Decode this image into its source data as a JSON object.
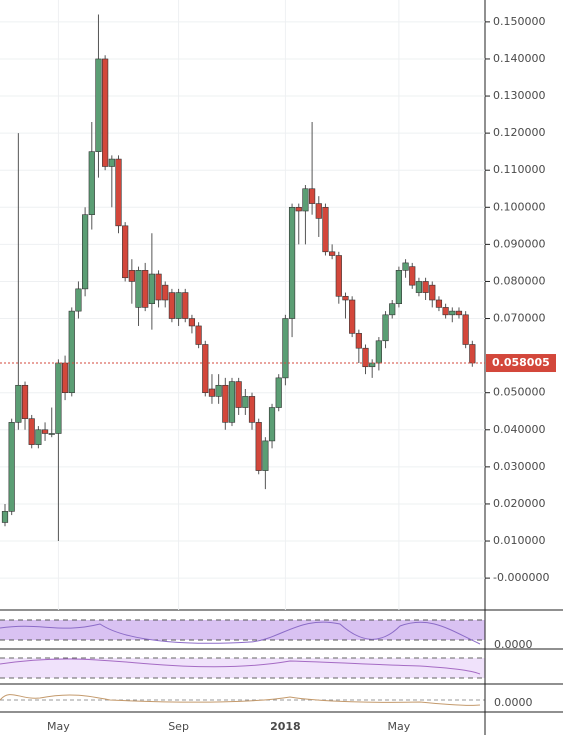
{
  "chart_data": {
    "type": "candlestick",
    "categories": [
      null,
      null,
      null,
      null,
      null,
      null,
      null,
      null,
      "May",
      null,
      null,
      null,
      null,
      null,
      null,
      null,
      null,
      null,
      null,
      null,
      null,
      null,
      null,
      null,
      null,
      null,
      "Sep",
      null,
      null,
      null,
      null,
      null,
      null,
      null,
      null,
      null,
      null,
      null,
      null,
      null,
      null,
      null,
      "2018",
      null,
      null,
      null,
      null,
      null,
      null,
      null,
      null,
      null,
      null,
      null,
      null,
      null,
      null,
      null,
      null,
      "May",
      null,
      null,
      null,
      null,
      null,
      null,
      null,
      null,
      null,
      null,
      null
    ],
    "open": [
      0.015,
      0.018,
      0.042,
      0.052,
      0.043,
      0.036,
      0.04,
      0.039,
      0.039,
      0.058,
      0.05,
      0.072,
      0.078,
      0.098,
      0.115,
      0.14,
      0.111,
      0.113,
      0.095,
      0.083,
      0.073,
      0.083,
      0.074,
      0.082,
      0.079,
      0.077,
      0.07,
      0.077,
      0.07,
      0.068,
      0.063,
      0.051,
      0.049,
      0.052,
      0.042,
      0.053,
      0.046,
      0.049,
      0.042,
      0.029,
      0.037,
      0.046,
      0.054,
      0.07,
      0.1,
      0.099,
      0.105,
      0.101,
      0.1,
      0.088,
      0.087,
      0.076,
      0.075,
      0.066,
      0.062,
      0.057,
      0.058,
      0.064,
      0.071,
      0.074,
      0.083,
      0.084,
      0.077,
      0.08,
      0.079,
      0.075,
      0.073,
      0.071,
      0.072,
      0.071,
      0.063
    ],
    "high": [
      0.02,
      0.043,
      0.12,
      0.053,
      0.044,
      0.041,
      0.042,
      0.046,
      0.059,
      0.06,
      0.073,
      0.08,
      0.1,
      0.123,
      0.152,
      0.141,
      0.114,
      0.114,
      0.096,
      0.086,
      0.084,
      0.085,
      0.093,
      0.083,
      0.08,
      0.078,
      0.078,
      0.078,
      0.071,
      0.069,
      0.064,
      0.055,
      0.055,
      0.054,
      0.054,
      0.054,
      0.051,
      0.05,
      0.043,
      0.038,
      0.047,
      0.055,
      0.071,
      0.101,
      0.101,
      0.106,
      0.123,
      0.103,
      0.101,
      0.09,
      0.088,
      0.077,
      0.076,
      0.067,
      0.063,
      0.059,
      0.065,
      0.072,
      0.075,
      0.084,
      0.086,
      0.085,
      0.081,
      0.081,
      0.08,
      0.076,
      0.074,
      0.073,
      0.073,
      0.072,
      0.064
    ],
    "low": [
      0.014,
      0.017,
      0.04,
      0.04,
      0.035,
      0.035,
      0.037,
      0.038,
      0.01,
      0.048,
      0.049,
      0.07,
      0.076,
      0.094,
      0.108,
      0.11,
      0.1,
      0.093,
      0.08,
      0.074,
      0.068,
      0.072,
      0.067,
      0.073,
      0.073,
      0.069,
      0.068,
      0.069,
      0.066,
      0.062,
      0.049,
      0.047,
      0.047,
      0.04,
      0.041,
      0.044,
      0.044,
      0.04,
      0.028,
      0.024,
      0.035,
      0.045,
      0.052,
      0.065,
      0.09,
      0.09,
      0.098,
      0.092,
      0.087,
      0.086,
      0.074,
      0.07,
      0.065,
      0.058,
      0.055,
      0.054,
      0.056,
      0.062,
      0.07,
      0.073,
      0.081,
      0.078,
      0.076,
      0.075,
      0.073,
      0.072,
      0.07,
      0.069,
      0.07,
      0.062,
      0.057
    ],
    "close": [
      0.018,
      0.042,
      0.052,
      0.043,
      0.036,
      0.04,
      0.039,
      0.039,
      0.058,
      0.05,
      0.072,
      0.078,
      0.098,
      0.115,
      0.14,
      0.111,
      0.113,
      0.095,
      0.081,
      0.08,
      0.083,
      0.073,
      0.082,
      0.075,
      0.075,
      0.07,
      0.077,
      0.07,
      0.068,
      0.063,
      0.05,
      0.049,
      0.052,
      0.042,
      0.053,
      0.046,
      0.049,
      0.042,
      0.029,
      0.037,
      0.046,
      0.054,
      0.07,
      0.1,
      0.099,
      0.105,
      0.101,
      0.097,
      0.088,
      0.087,
      0.076,
      0.075,
      0.066,
      0.062,
      0.057,
      0.058,
      0.064,
      0.071,
      0.074,
      0.083,
      0.085,
      0.079,
      0.08,
      0.077,
      0.075,
      0.073,
      0.071,
      0.072,
      0.071,
      0.063,
      0.058005
    ],
    "up_color": "#5b9e74",
    "down_color": "#d3473b",
    "ylim": [
      -0.0086,
      0.1559
    ],
    "yticks": [
      {
        "value": 0.15,
        "label": "0.150000"
      },
      {
        "value": 0.14,
        "label": "0.140000"
      },
      {
        "value": 0.13,
        "label": "0.130000"
      },
      {
        "value": 0.12,
        "label": "0.120000"
      },
      {
        "value": 0.11,
        "label": "0.110000"
      },
      {
        "value": 0.1,
        "label": "0.100000"
      },
      {
        "value": 0.09,
        "label": "0.090000"
      },
      {
        "value": 0.08,
        "label": "0.080000"
      },
      {
        "value": 0.07,
        "label": "0.070000"
      },
      {
        "value": 0.05,
        "label": "0.050000"
      },
      {
        "value": 0.04,
        "label": "0.040000"
      },
      {
        "value": 0.03,
        "label": "0.030000"
      },
      {
        "value": 0.02,
        "label": "0.020000"
      },
      {
        "value": 0.01,
        "label": "0.010000"
      },
      {
        "value": 0,
        "label": "-0.000000"
      }
    ],
    "last_price": {
      "value": 0.058005,
      "label": "0.058005",
      "color": "#d3473b"
    },
    "grid": true,
    "indicator_labels": [
      "0.0000",
      "0.0000"
    ]
  }
}
